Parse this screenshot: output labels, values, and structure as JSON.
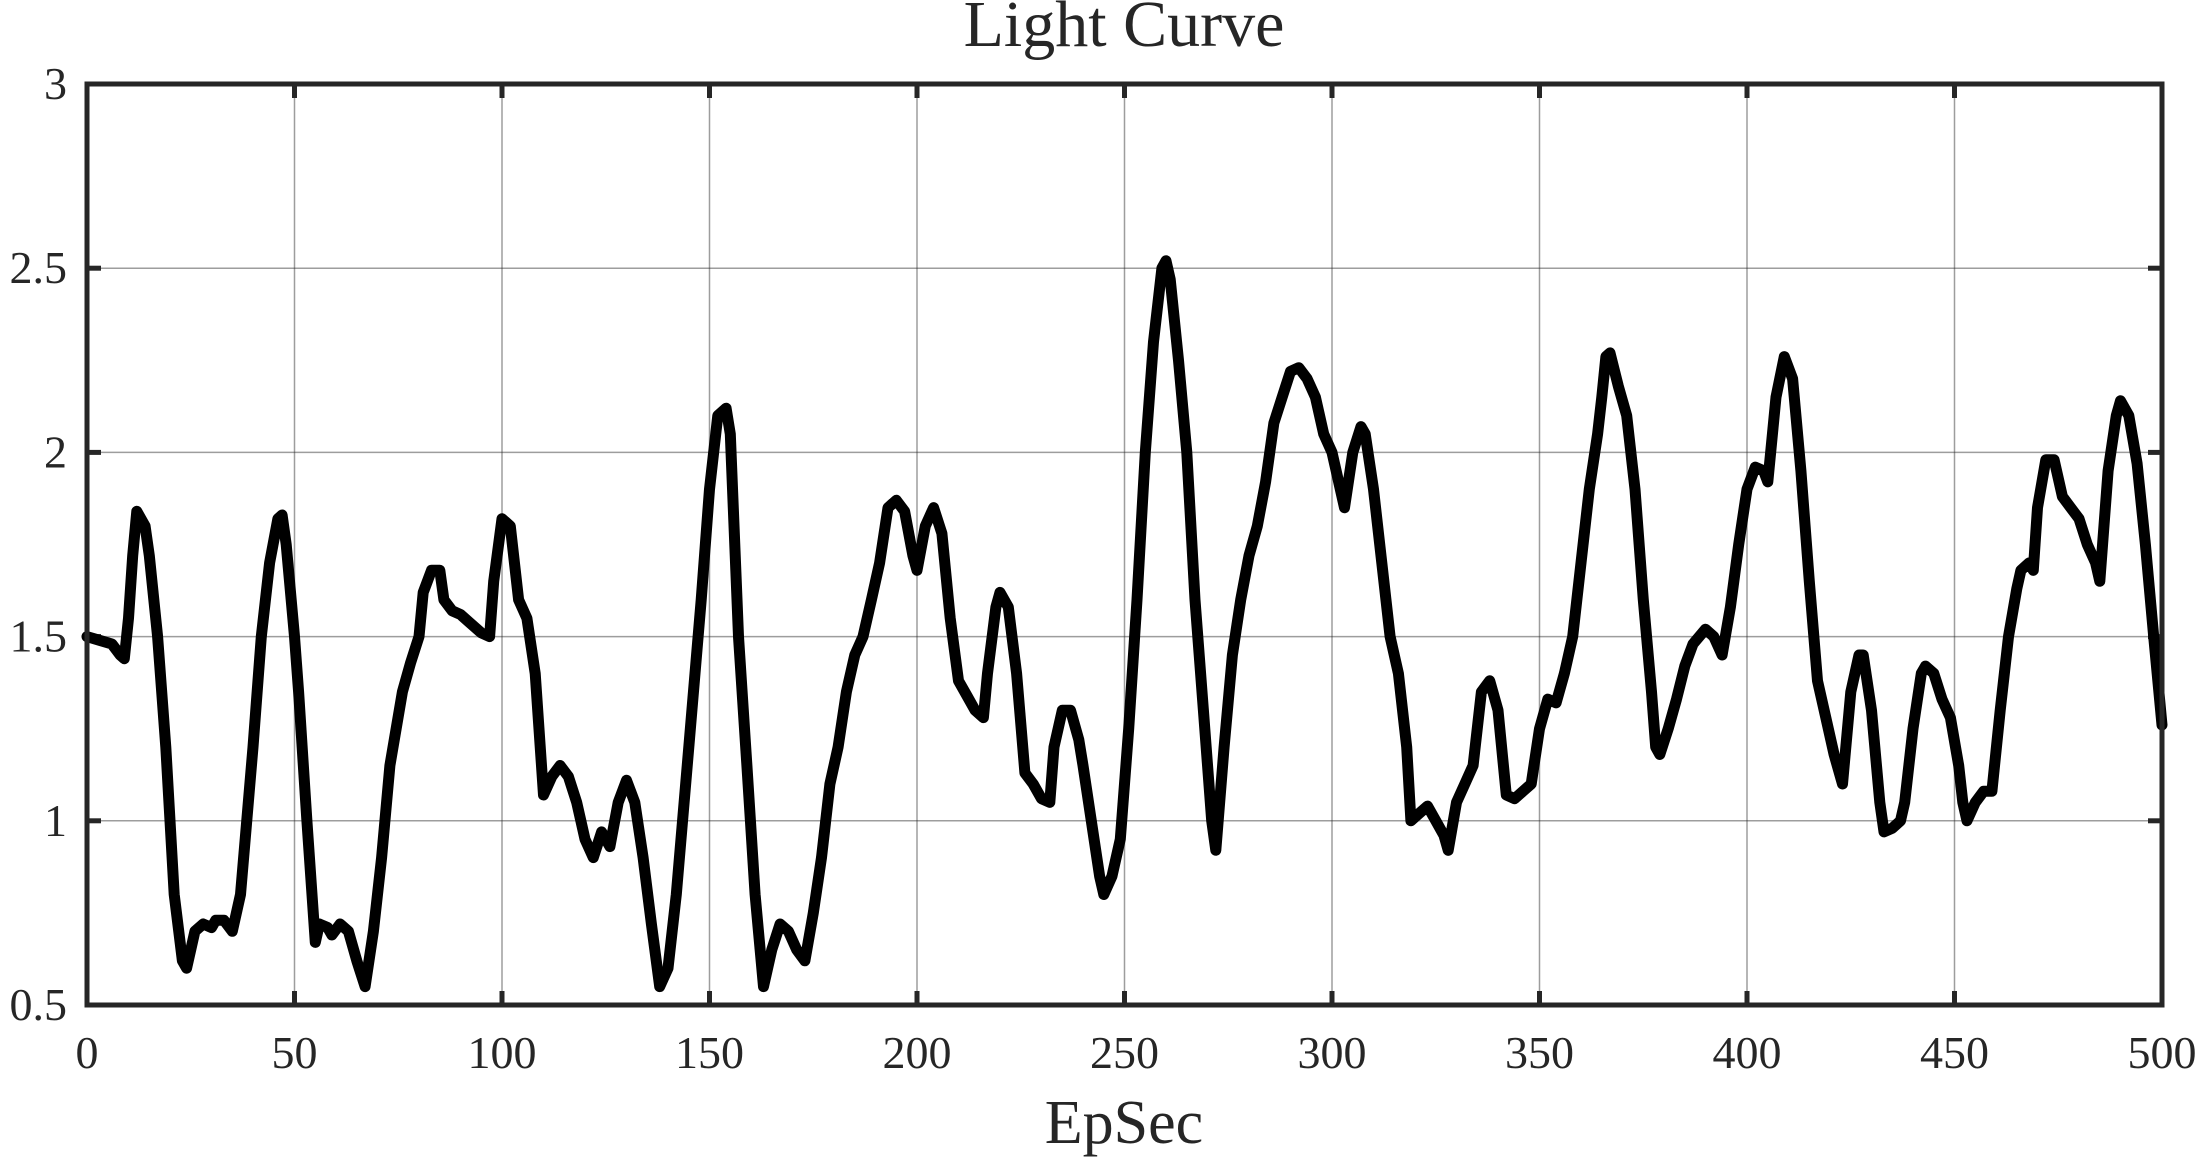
{
  "chart_data": {
    "type": "line",
    "title": "Light Curve",
    "x_label": "EpSec",
    "color": "#000000",
    "grid": true,
    "xlim": [
      0,
      500
    ],
    "ylim": [
      0.5,
      3
    ],
    "xticks": [
      0,
      50,
      100,
      150,
      200,
      250,
      300,
      350,
      400,
      450,
      500
    ],
    "yticks": [
      0.5,
      1,
      1.5,
      2,
      2.5,
      3
    ],
    "x": [
      0,
      3,
      6,
      8,
      9,
      10,
      11,
      12,
      14,
      15,
      17,
      19,
      21,
      23,
      24,
      26,
      28,
      30,
      31,
      33,
      35,
      37,
      40,
      42,
      44,
      46,
      47,
      48,
      50,
      51,
      53,
      55,
      56,
      58,
      59,
      61,
      63,
      65,
      67,
      69,
      71,
      73,
      76,
      78,
      80,
      81,
      83,
      85,
      86,
      88,
      90,
      92,
      95,
      97,
      98,
      100,
      102,
      104,
      106,
      108,
      110,
      112,
      114,
      116,
      118,
      120,
      122,
      124,
      126,
      128,
      130,
      132,
      134,
      136,
      138,
      140,
      142,
      145,
      148,
      150,
      152,
      154,
      155,
      157,
      159,
      161,
      163,
      165,
      167,
      169,
      171,
      173,
      175,
      177,
      179,
      181,
      183,
      185,
      187,
      189,
      191,
      193,
      195,
      197,
      199,
      200,
      202,
      204,
      206,
      208,
      210,
      212,
      214,
      216,
      217,
      219,
      220,
      222,
      224,
      226,
      228,
      230,
      232,
      233,
      235,
      237,
      239,
      240,
      242,
      244,
      245,
      247,
      249,
      251,
      253,
      255,
      257,
      259,
      260,
      261,
      263,
      265,
      267,
      269,
      271,
      272,
      274,
      276,
      278,
      280,
      282,
      284,
      286,
      288,
      290,
      292,
      294,
      296,
      298,
      300,
      302,
      303,
      305,
      307,
      308,
      310,
      312,
      314,
      316,
      318,
      319,
      321,
      323,
      325,
      327,
      328,
      330,
      332,
      334,
      336,
      338,
      340,
      342,
      344,
      346,
      348,
      350,
      352,
      354,
      356,
      358,
      360,
      362,
      364,
      365,
      366,
      367,
      369,
      371,
      373,
      375,
      377,
      378,
      379,
      381,
      383,
      385,
      387,
      390,
      392,
      394,
      396,
      398,
      400,
      402,
      404,
      405,
      407,
      409,
      411,
      413,
      415,
      417,
      419,
      421,
      423,
      425,
      427,
      428,
      430,
      432,
      433,
      435,
      437,
      438,
      440,
      442,
      443,
      445,
      447,
      449,
      451,
      452,
      453,
      455,
      457,
      459,
      461,
      463,
      465,
      466,
      468,
      469,
      470,
      472,
      474,
      476,
      478,
      480,
      482,
      484,
      485,
      487,
      489,
      490,
      492,
      494,
      496,
      498,
      500
    ],
    "values": [
      1.5,
      1.49,
      1.48,
      1.45,
      1.44,
      1.55,
      1.72,
      1.84,
      1.8,
      1.72,
      1.5,
      1.2,
      0.8,
      0.62,
      0.6,
      0.7,
      0.72,
      0.71,
      0.73,
      0.73,
      0.7,
      0.8,
      1.2,
      1.5,
      1.7,
      1.82,
      1.83,
      1.75,
      1.5,
      1.35,
      1.0,
      0.67,
      0.72,
      0.71,
      0.69,
      0.72,
      0.7,
      0.62,
      0.55,
      0.7,
      0.9,
      1.15,
      1.35,
      1.43,
      1.5,
      1.62,
      1.68,
      1.68,
      1.6,
      1.57,
      1.56,
      1.54,
      1.51,
      1.5,
      1.65,
      1.82,
      1.8,
      1.6,
      1.55,
      1.4,
      1.07,
      1.12,
      1.15,
      1.12,
      1.05,
      0.95,
      0.9,
      0.97,
      0.93,
      1.05,
      1.11,
      1.05,
      0.9,
      0.72,
      0.55,
      0.6,
      0.8,
      1.2,
      1.6,
      1.9,
      2.1,
      2.12,
      2.05,
      1.5,
      1.15,
      0.8,
      0.55,
      0.65,
      0.72,
      0.7,
      0.65,
      0.62,
      0.75,
      0.9,
      1.1,
      1.2,
      1.35,
      1.45,
      1.5,
      1.6,
      1.7,
      1.85,
      1.87,
      1.84,
      1.72,
      1.68,
      1.8,
      1.85,
      1.78,
      1.55,
      1.38,
      1.34,
      1.3,
      1.28,
      1.4,
      1.58,
      1.62,
      1.58,
      1.4,
      1.13,
      1.1,
      1.06,
      1.05,
      1.2,
      1.3,
      1.3,
      1.22,
      1.15,
      1.0,
      0.85,
      0.8,
      0.85,
      0.95,
      1.25,
      1.6,
      2.0,
      2.3,
      2.5,
      2.52,
      2.47,
      2.25,
      2.0,
      1.6,
      1.3,
      1.0,
      0.92,
      1.2,
      1.45,
      1.6,
      1.72,
      1.8,
      1.92,
      2.08,
      2.15,
      2.22,
      2.23,
      2.2,
      2.15,
      2.05,
      2.0,
      1.9,
      1.85,
      2.0,
      2.07,
      2.05,
      1.9,
      1.7,
      1.5,
      1.4,
      1.2,
      1.0,
      1.02,
      1.04,
      1.0,
      0.96,
      0.92,
      1.05,
      1.1,
      1.15,
      1.35,
      1.38,
      1.3,
      1.07,
      1.06,
      1.08,
      1.1,
      1.25,
      1.33,
      1.32,
      1.4,
      1.5,
      1.7,
      1.9,
      2.05,
      2.15,
      2.26,
      2.27,
      2.18,
      2.1,
      1.9,
      1.6,
      1.35,
      1.2,
      1.18,
      1.25,
      1.33,
      1.42,
      1.48,
      1.52,
      1.5,
      1.45,
      1.58,
      1.75,
      1.9,
      1.96,
      1.95,
      1.92,
      2.15,
      2.26,
      2.2,
      1.95,
      1.65,
      1.38,
      1.28,
      1.18,
      1.1,
      1.35,
      1.45,
      1.45,
      1.3,
      1.05,
      0.97,
      0.98,
      1.0,
      1.05,
      1.25,
      1.4,
      1.42,
      1.4,
      1.33,
      1.28,
      1.15,
      1.05,
      1.0,
      1.05,
      1.08,
      1.08,
      1.3,
      1.5,
      1.63,
      1.68,
      1.7,
      1.68,
      1.85,
      1.98,
      1.98,
      1.88,
      1.85,
      1.82,
      1.75,
      1.7,
      1.65,
      1.95,
      2.1,
      2.14,
      2.1,
      1.97,
      1.75,
      1.5,
      1.26
    ]
  }
}
